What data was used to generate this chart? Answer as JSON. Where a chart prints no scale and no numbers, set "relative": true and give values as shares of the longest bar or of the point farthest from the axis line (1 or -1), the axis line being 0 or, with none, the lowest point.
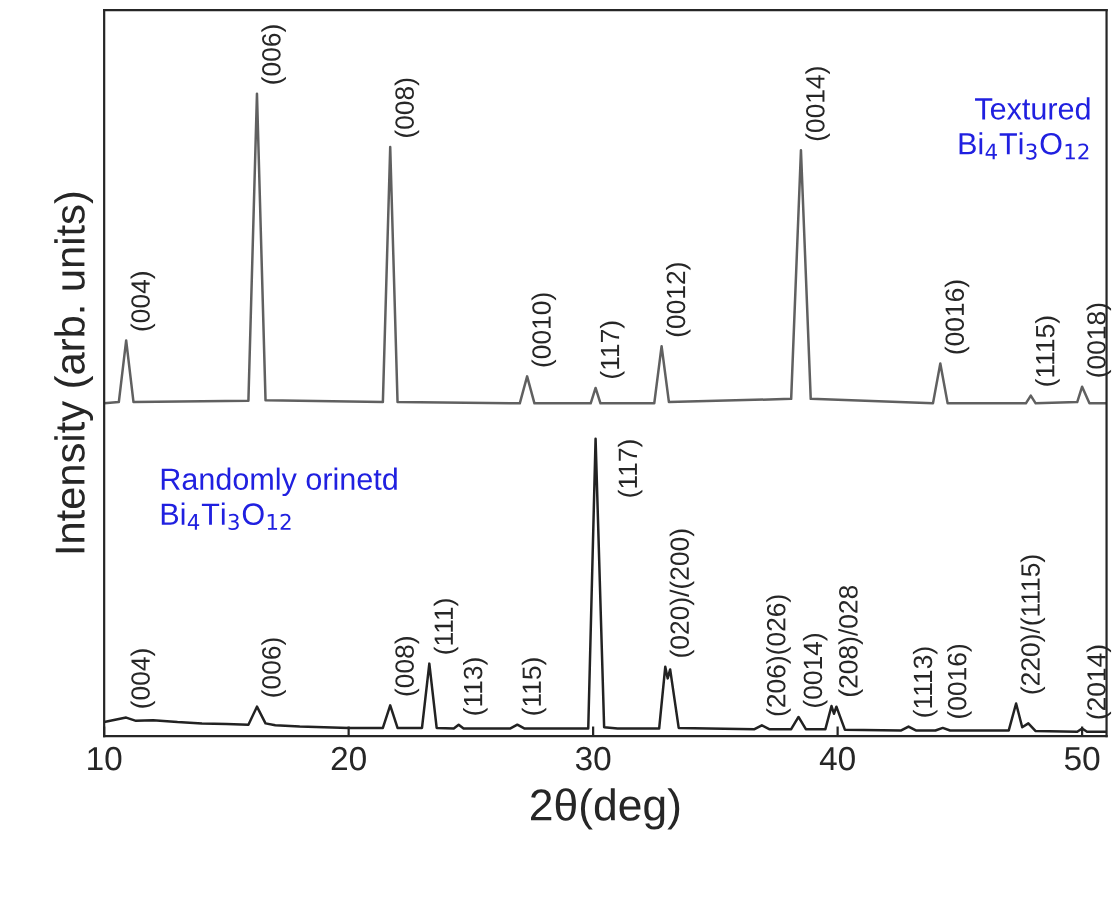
{
  "chart_data": {
    "type": "line",
    "relative": true,
    "xlabel": "2θ(deg)",
    "ylabel": "Intensity (arb. units)",
    "xlim": [
      10,
      51
    ],
    "xticks": [
      10,
      20,
      30,
      40,
      50
    ],
    "series": [
      {
        "color": "#606060",
        "x": [
          10,
          10.6,
          10.9,
          11.2,
          15.9,
          16.25,
          16.6,
          21.4,
          21.7,
          22.0,
          27.0,
          27.3,
          27.6,
          29.9,
          30.1,
          30.3,
          32.5,
          32.8,
          33.1,
          38.1,
          38.5,
          38.9,
          43.9,
          44.2,
          44.5,
          47.7,
          47.9,
          48.1,
          49.8,
          50.0,
          50.3,
          51
        ],
        "values": [
          0.518,
          0.52,
          0.616,
          0.52,
          0.522,
          1.0,
          0.523,
          0.52,
          0.917,
          0.52,
          0.518,
          0.56,
          0.518,
          0.518,
          0.542,
          0.518,
          0.518,
          0.607,
          0.52,
          0.525,
          0.912,
          0.525,
          0.518,
          0.58,
          0.518,
          0.518,
          0.53,
          0.518,
          0.52,
          0.544,
          0.518,
          0.518
        ]
      },
      {
        "color": "#222222",
        "x": [
          10,
          10.5,
          10.9,
          11.3,
          12,
          13,
          14,
          15,
          15.9,
          16.25,
          16.6,
          17,
          18,
          19,
          20,
          21.4,
          21.7,
          22.0,
          23.0,
          23.3,
          23.6,
          24.3,
          24.5,
          24.7,
          26.6,
          26.9,
          27.2,
          29.8,
          30.1,
          30.45,
          31,
          32.7,
          32.95,
          33.05,
          33.15,
          33.5,
          36.6,
          36.9,
          37.2,
          38.1,
          38.4,
          38.7,
          39.5,
          39.75,
          39.85,
          39.95,
          40.3,
          42.6,
          42.9,
          43.2,
          44.0,
          44.3,
          44.6,
          47.0,
          47.3,
          47.55,
          47.8,
          48.1,
          49.8,
          50.0,
          50.2,
          51
        ],
        "values": [
          0.022,
          0.026,
          0.029,
          0.024,
          0.025,
          0.022,
          0.02,
          0.019,
          0.018,
          0.046,
          0.02,
          0.017,
          0.015,
          0.014,
          0.013,
          0.013,
          0.048,
          0.013,
          0.013,
          0.113,
          0.013,
          0.012,
          0.018,
          0.012,
          0.012,
          0.018,
          0.012,
          0.012,
          0.463,
          0.014,
          0.012,
          0.012,
          0.108,
          0.09,
          0.104,
          0.013,
          0.011,
          0.017,
          0.011,
          0.011,
          0.03,
          0.011,
          0.011,
          0.047,
          0.035,
          0.046,
          0.01,
          0.009,
          0.015,
          0.009,
          0.009,
          0.013,
          0.009,
          0.009,
          0.051,
          0.014,
          0.02,
          0.008,
          0.007,
          0.012,
          0.007,
          0.007
        ]
      }
    ],
    "annotations": [
      "Textured\nBi$_{4}$Ti$_{3}$O$_{12}$",
      "Randomly orinetd\nBi$_{4}$Ti$_{3}$O$_{12}$",
      {
        "text": "(004)",
        "x": 10.9,
        "y": 0.616
      },
      {
        "text": "(006)",
        "x": 16.25,
        "y": 1.0
      },
      {
        "text": "(008)",
        "x": 21.7,
        "y": 0.917
      },
      {
        "text": "(0010)",
        "x": 27.3,
        "y": 0.56
      },
      {
        "text": "(117)",
        "x": 30.1,
        "y": 0.542
      },
      {
        "text": "(0012)",
        "x": 32.8,
        "y": 0.607
      },
      {
        "text": "(0014)",
        "x": 38.5,
        "y": 0.912
      },
      {
        "text": "(0016)",
        "x": 44.2,
        "y": 0.58
      },
      {
        "text": "(1115)",
        "x": 47.9,
        "y": 0.53
      },
      {
        "text": "(0018)",
        "x": 50.0,
        "y": 0.544
      },
      {
        "text": "(004)",
        "x": 10.9,
        "y": 0.029
      },
      {
        "text": "(006)",
        "x": 16.25,
        "y": 0.046
      },
      {
        "text": "(008)",
        "x": 21.7,
        "y": 0.048
      },
      {
        "text": "(111)",
        "x": 23.3,
        "y": 0.113
      },
      {
        "text": "(113)",
        "x": 24.5,
        "y": 0.018
      },
      {
        "text": "(115)",
        "x": 26.9,
        "y": 0.018
      },
      {
        "text": "(117)",
        "x": 30.1,
        "y": 0.463
      },
      {
        "text": "(020)/(200)",
        "x": 32.95,
        "y": 0.108
      },
      {
        "text": "(206)(026)",
        "x": 36.9,
        "y": 0.017
      },
      {
        "text": "(0014)",
        "x": 38.4,
        "y": 0.03
      },
      {
        "text": "(208)/028",
        "x": 39.85,
        "y": 0.047
      },
      {
        "text": "(1113)",
        "x": 42.9,
        "y": 0.015
      },
      {
        "text": "(0016)",
        "x": 44.3,
        "y": 0.013
      },
      {
        "text": "(220)/(1115)",
        "x": 47.3,
        "y": 0.051
      },
      {
        "text": "(2014)",
        "x": 50.0,
        "y": 0.012
      }
    ]
  }
}
